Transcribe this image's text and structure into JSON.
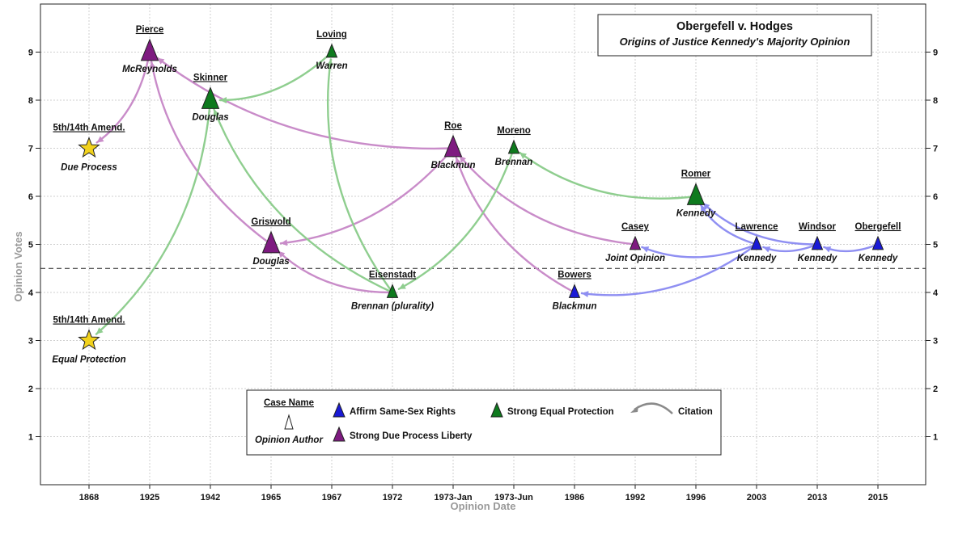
{
  "chart_data": {
    "type": "scatter",
    "title": "Obergefell v. Hodges",
    "subtitle": "Origins of Justice Kennedy's Majority Opinion",
    "xlabel": "Opinion Date",
    "ylabel": "Opinion Votes",
    "categories": [
      "1868",
      "1925",
      "1942",
      "1965",
      "1967",
      "1972",
      "1973-Jan",
      "1973-Jun",
      "1986",
      "1992",
      "1996",
      "2003",
      "2013",
      "2015"
    ],
    "ylim": [
      0,
      10
    ],
    "yticks": [
      1,
      2,
      3,
      4,
      5,
      6,
      7,
      8,
      9
    ],
    "grid": true,
    "reference_line_y": 4.5,
    "colors": {
      "affirm": "#1a1ad6",
      "equal": "#0e7a1e",
      "due": "#7e1a80",
      "star": "#f2d21c",
      "edge_equal": "#8fce8f",
      "edge_due": "#c98cc9",
      "edge_affirm": "#8f8ff2"
    },
    "points": [
      {
        "id": "due-process",
        "name": "5th/14th Amend.",
        "author": "Due Process",
        "x": "1868",
        "y": 7,
        "category": "star",
        "size": "large"
      },
      {
        "id": "equal-protection",
        "name": "5th/14th Amend.",
        "author": "Equal Protection",
        "x": "1868",
        "y": 3,
        "category": "star",
        "size": "large"
      },
      {
        "id": "pierce",
        "name": "Pierce",
        "author": "McReynolds",
        "x": "1925",
        "y": 9,
        "category": "due",
        "size": "large"
      },
      {
        "id": "skinner",
        "name": "Skinner",
        "author": "Douglas",
        "x": "1942",
        "y": 8,
        "category": "equal",
        "size": "large"
      },
      {
        "id": "griswold",
        "name": "Griswold",
        "author": "Douglas",
        "x": "1965",
        "y": 5,
        "category": "due",
        "size": "large"
      },
      {
        "id": "loving",
        "name": "Loving",
        "author": "Warren",
        "x": "1967",
        "y": 9,
        "category": "equal",
        "size": "small"
      },
      {
        "id": "eisenstadt",
        "name": "Eisenstadt",
        "author": "Brennan (plurality)",
        "x": "1972",
        "y": 4,
        "category": "equal",
        "size": "small"
      },
      {
        "id": "roe",
        "name": "Roe",
        "author": "Blackmun",
        "x": "1973-Jan",
        "y": 7,
        "category": "due",
        "size": "large"
      },
      {
        "id": "moreno",
        "name": "Moreno",
        "author": "Brennan",
        "x": "1973-Jun",
        "y": 7,
        "category": "equal",
        "size": "small"
      },
      {
        "id": "bowers",
        "name": "Bowers",
        "author": "Blackmun",
        "x": "1986",
        "y": 4,
        "category": "affirm",
        "size": "small"
      },
      {
        "id": "casey",
        "name": "Casey",
        "author": "Joint Opinion",
        "x": "1992",
        "y": 5,
        "category": "due",
        "size": "small"
      },
      {
        "id": "romer",
        "name": "Romer",
        "author": "Kennedy",
        "x": "1996",
        "y": 6,
        "category": "equal",
        "size": "large"
      },
      {
        "id": "lawrence",
        "name": "Lawrence",
        "author": "Kennedy",
        "x": "2003",
        "y": 5,
        "category": "affirm",
        "size": "small"
      },
      {
        "id": "windsor",
        "name": "Windsor",
        "author": "Kennedy",
        "x": "2013",
        "y": 5,
        "category": "affirm",
        "size": "small"
      },
      {
        "id": "obergefell",
        "name": "Obergefell",
        "author": "Kennedy",
        "x": "2015",
        "y": 5,
        "category": "affirm",
        "size": "small"
      }
    ],
    "citations": [
      {
        "from": "pierce",
        "to": "due-process",
        "type": "due"
      },
      {
        "from": "griswold",
        "to": "pierce",
        "type": "due"
      },
      {
        "from": "roe",
        "to": "pierce",
        "type": "due"
      },
      {
        "from": "roe",
        "to": "griswold",
        "type": "due"
      },
      {
        "from": "eisenstadt",
        "to": "griswold",
        "type": "due"
      },
      {
        "from": "bowers",
        "to": "roe",
        "type": "due"
      },
      {
        "from": "casey",
        "to": "roe",
        "type": "due"
      },
      {
        "from": "skinner",
        "to": "equal-protection",
        "type": "equal"
      },
      {
        "from": "loving",
        "to": "skinner",
        "type": "equal"
      },
      {
        "from": "eisenstadt",
        "to": "skinner",
        "type": "equal"
      },
      {
        "from": "eisenstadt",
        "to": "loving",
        "type": "equal"
      },
      {
        "from": "moreno",
        "to": "eisenstadt",
        "type": "equal"
      },
      {
        "from": "romer",
        "to": "moreno",
        "type": "equal"
      },
      {
        "from": "lawrence",
        "to": "casey",
        "type": "affirm"
      },
      {
        "from": "lawrence",
        "to": "bowers",
        "type": "affirm"
      },
      {
        "from": "lawrence",
        "to": "romer",
        "type": "affirm"
      },
      {
        "from": "windsor",
        "to": "romer",
        "type": "affirm"
      },
      {
        "from": "windsor",
        "to": "lawrence",
        "type": "affirm"
      },
      {
        "from": "obergefell",
        "to": "windsor",
        "type": "affirm"
      }
    ],
    "legend": {
      "case_name": "Case Name",
      "opinion_author": "Opinion Author",
      "affirm": "Affirm Same-Sex Rights",
      "due": "Strong Due Process Liberty",
      "equal": "Strong Equal Protection",
      "citation": "Citation"
    }
  }
}
